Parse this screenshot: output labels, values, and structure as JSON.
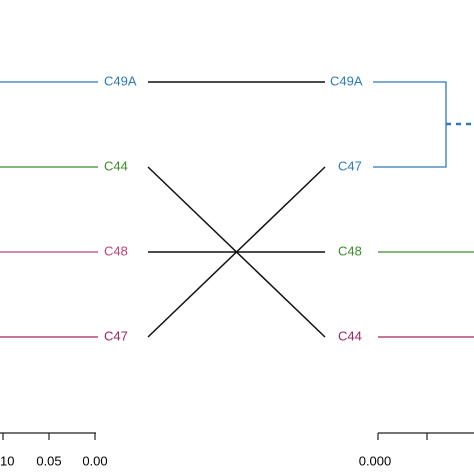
{
  "left_tree": {
    "labels": [
      "C49A",
      "C44",
      "C48",
      "C47"
    ]
  },
  "right_tree": {
    "labels": [
      "C49A",
      "C47",
      "C48",
      "C44"
    ]
  },
  "left_axis": {
    "ticks": [
      "10",
      "0.05",
      "0.00"
    ]
  },
  "right_axis": {
    "ticks": [
      "0.000"
    ]
  }
}
